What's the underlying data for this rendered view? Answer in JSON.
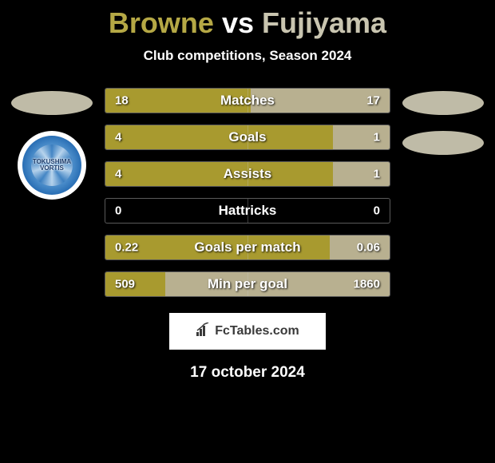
{
  "title": {
    "player1": "Browne",
    "vs": "vs",
    "player2": "Fujiyama",
    "player1_color": "#b5a845",
    "vs_color": "#ffffff",
    "player2_color": "#c9c5b0"
  },
  "subtitle": "Club competitions, Season 2024",
  "left_side": {
    "oval_color": "#c9c5b0",
    "team_label_line1": "TOKUSHIMA",
    "team_label_line2": "VORTIS"
  },
  "right_side": {
    "oval1_color": "#c9c5b0",
    "oval2_color": "#c9c5b0"
  },
  "bars": {
    "fill_color_left": "#a89a2f",
    "fill_color_right": "#b8b090",
    "rows": [
      {
        "label": "Matches",
        "left_val": "18",
        "right_val": "17",
        "left_pct": 51,
        "right_pct": 49
      },
      {
        "label": "Goals",
        "left_val": "4",
        "right_val": "1",
        "left_pct": 80,
        "right_pct": 20
      },
      {
        "label": "Assists",
        "left_val": "4",
        "right_val": "1",
        "left_pct": 80,
        "right_pct": 20
      },
      {
        "label": "Hattricks",
        "left_val": "0",
        "right_val": "0",
        "left_pct": 0,
        "right_pct": 0
      },
      {
        "label": "Goals per match",
        "left_val": "0.22",
        "right_val": "0.06",
        "left_pct": 79,
        "right_pct": 21
      },
      {
        "label": "Min per goal",
        "left_val": "509",
        "right_val": "1860",
        "left_pct": 21,
        "right_pct": 79
      }
    ]
  },
  "footer": {
    "icon_text": "⬚",
    "brand": "FcTables.com"
  },
  "date": "17 october 2024"
}
